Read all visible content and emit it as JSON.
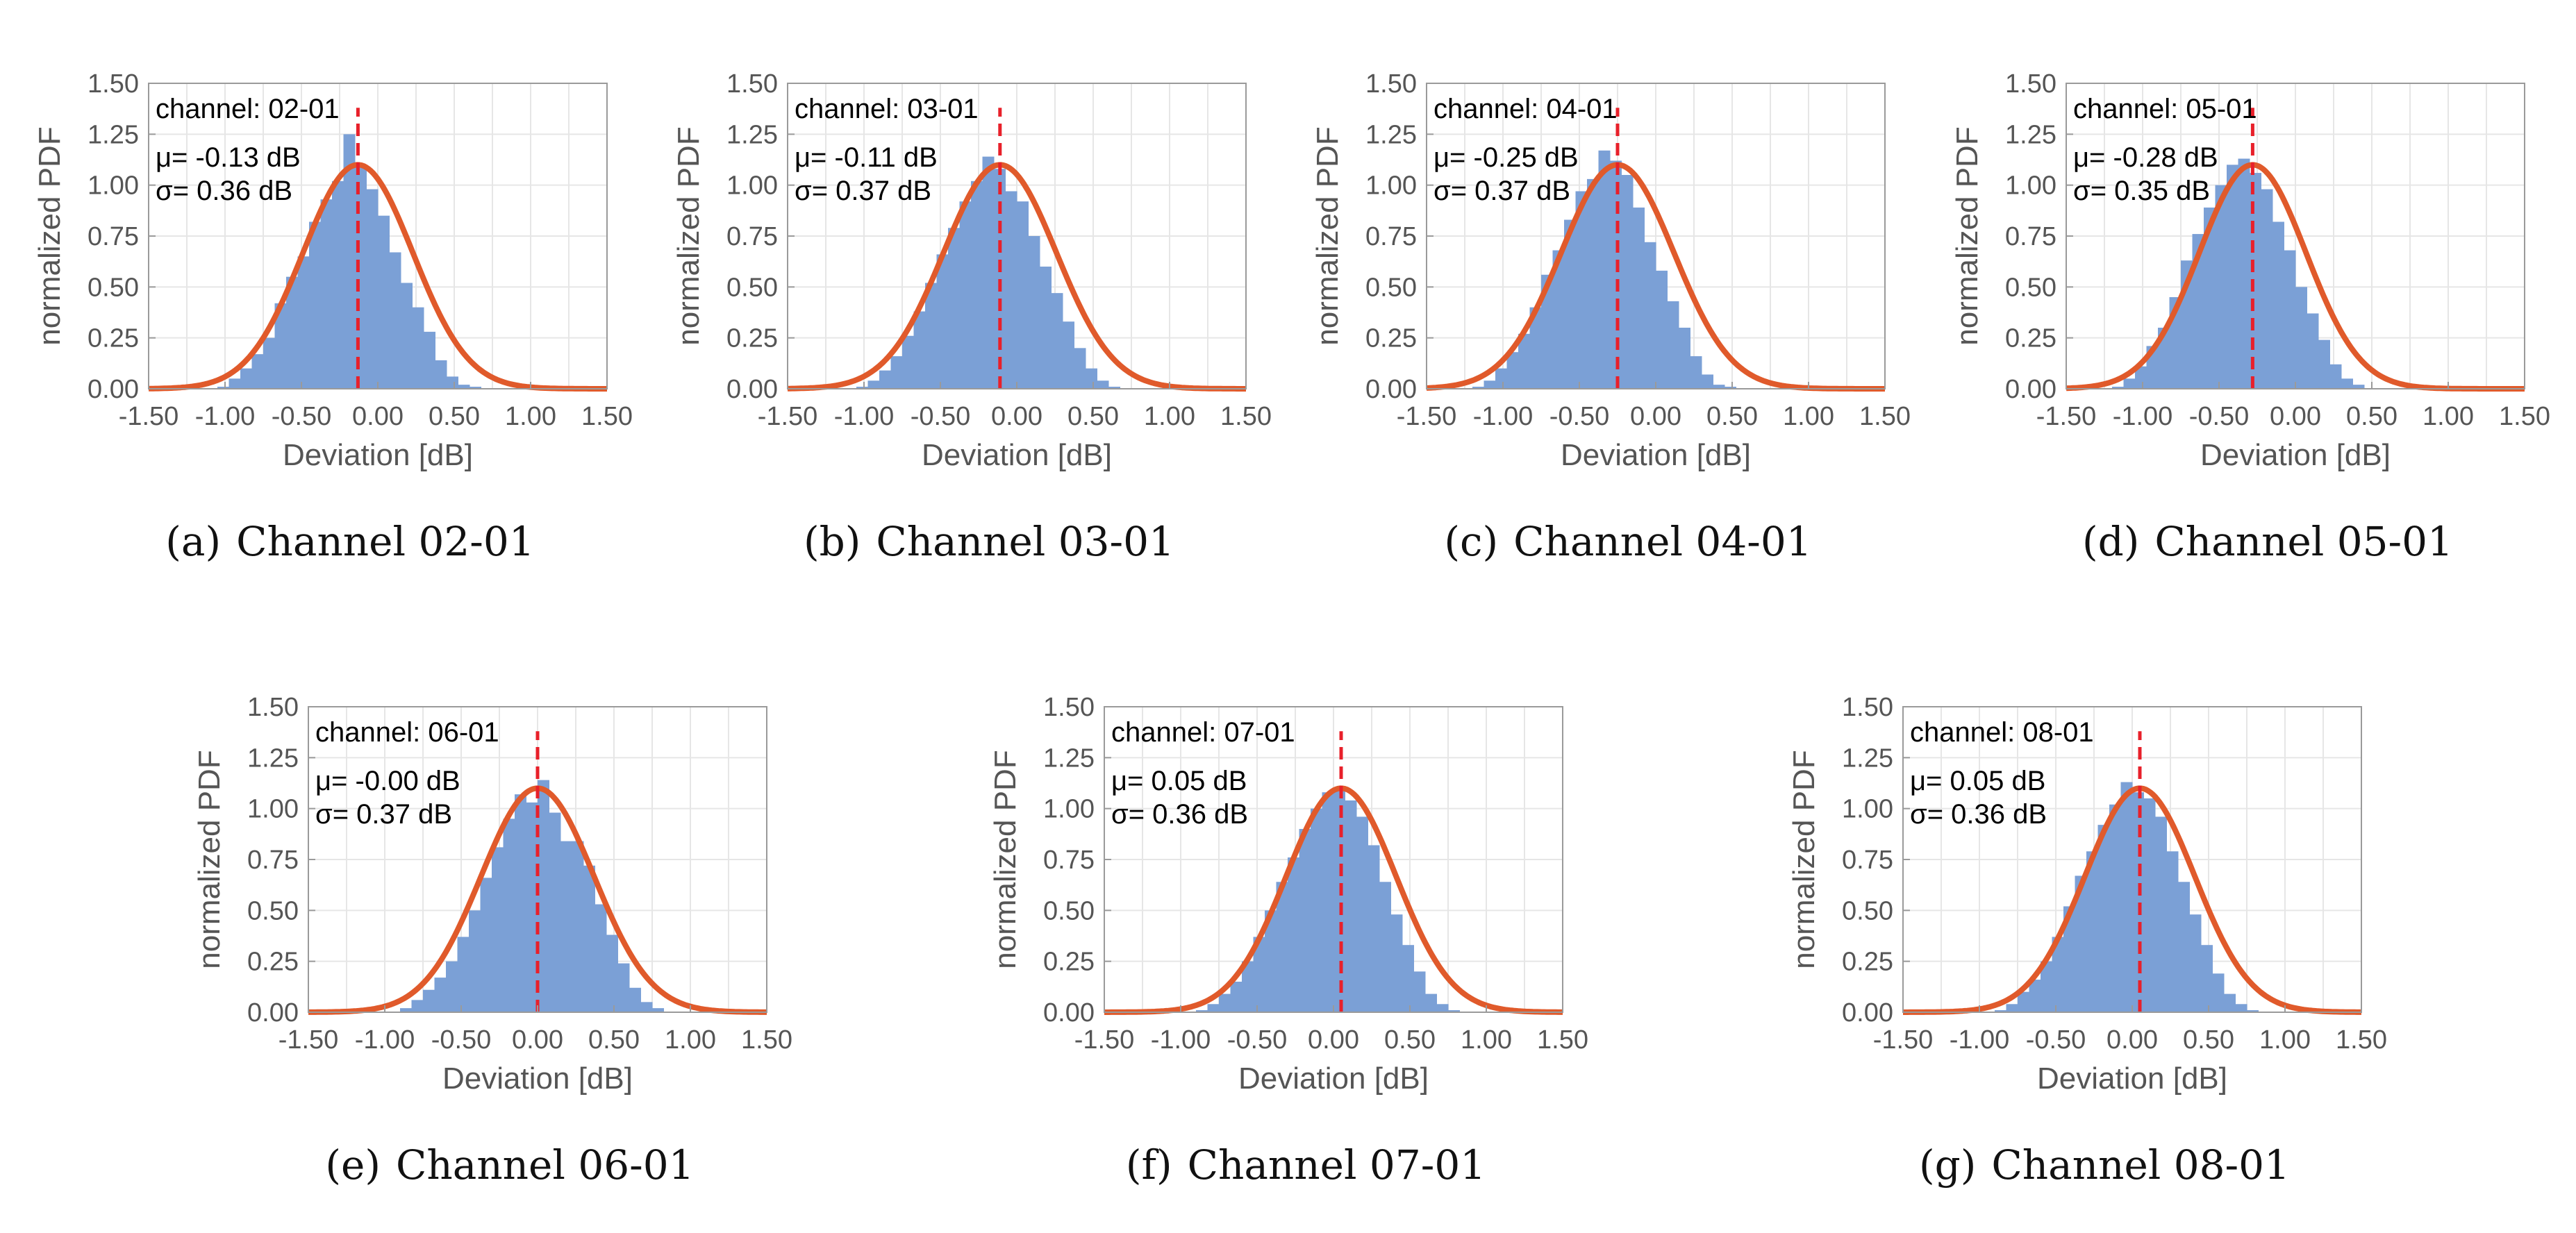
{
  "colors": {
    "bar": "#7ba0d6",
    "fit": "#e05a2b",
    "mean_line": "#e8202a",
    "axis": "#9a9a9a",
    "grid": "#e6e6e6",
    "tick_text": "#555555"
  },
  "chart_data": [
    {
      "type": "bar",
      "channel_label": "channel: 02-01",
      "mu_text": "μ= -0.13 dB",
      "sigma_text": "σ= 0.36 dB",
      "mu": -0.13,
      "sigma": 0.36,
      "caption_letter": "(a)",
      "caption_text": "Channel 02-01",
      "xlabel": "Deviation [dB]",
      "ylabel": "normalized PDF",
      "xlim": [
        -1.5,
        1.5
      ],
      "ylim": [
        0,
        1.5
      ],
      "xticks": [
        "-1.50",
        "-1.00",
        "-0.50",
        "0.00",
        "0.50",
        "1.00",
        "1.50"
      ],
      "yticks": [
        "0.00",
        "0.25",
        "0.50",
        "0.75",
        "1.00",
        "1.25",
        "1.50"
      ],
      "bin_width": 0.075,
      "bin_start": -1.05,
      "values": [
        0.01,
        0.05,
        0.1,
        0.17,
        0.25,
        0.42,
        0.55,
        0.65,
        0.82,
        0.93,
        1.02,
        1.25,
        1.1,
        0.98,
        0.85,
        0.67,
        0.52,
        0.4,
        0.28,
        0.14,
        0.06,
        0.02,
        0.01,
        0.0
      ],
      "grid": true
    },
    {
      "type": "bar",
      "channel_label": "channel: 03-01",
      "mu_text": "μ= -0.11 dB",
      "sigma_text": "σ= 0.37 dB",
      "mu": -0.11,
      "sigma": 0.37,
      "caption_letter": "(b)",
      "caption_text": "Channel 03-01",
      "xlabel": "Deviation [dB]",
      "ylabel": "normalized PDF",
      "xlim": [
        -1.5,
        1.5
      ],
      "ylim": [
        0,
        1.5
      ],
      "xticks": [
        "-1.50",
        "-1.00",
        "-0.50",
        "0.00",
        "0.50",
        "1.00",
        "1.50"
      ],
      "yticks": [
        "0.00",
        "0.25",
        "0.50",
        "0.75",
        "1.00",
        "1.25",
        "1.50"
      ],
      "bin_width": 0.075,
      "bin_start": -1.05,
      "values": [
        0.01,
        0.04,
        0.09,
        0.16,
        0.26,
        0.38,
        0.52,
        0.66,
        0.79,
        0.92,
        1.02,
        1.14,
        1.08,
        0.97,
        0.92,
        0.75,
        0.6,
        0.47,
        0.33,
        0.2,
        0.1,
        0.04,
        0.01,
        0.0
      ],
      "grid": true
    },
    {
      "type": "bar",
      "channel_label": "channel: 04-01",
      "mu_text": "μ= -0.25 dB",
      "sigma_text": "σ= 0.37 dB",
      "mu": -0.25,
      "sigma": 0.37,
      "caption_letter": "(c)",
      "caption_text": "Channel 04-01",
      "xlabel": "Deviation [dB]",
      "ylabel": "normalized PDF",
      "xlim": [
        -1.5,
        1.5
      ],
      "ylim": [
        0,
        1.5
      ],
      "xticks": [
        "-1.50",
        "-1.00",
        "-0.50",
        "0.00",
        "0.50",
        "1.00",
        "1.50"
      ],
      "yticks": [
        "0.00",
        "0.25",
        "0.50",
        "0.75",
        "1.00",
        "1.25",
        "1.50"
      ],
      "bin_width": 0.075,
      "bin_start": -1.2,
      "values": [
        0.01,
        0.04,
        0.1,
        0.18,
        0.27,
        0.4,
        0.56,
        0.68,
        0.83,
        0.97,
        1.03,
        1.17,
        1.12,
        1.05,
        0.89,
        0.72,
        0.58,
        0.43,
        0.3,
        0.16,
        0.07,
        0.02,
        0.01,
        0.0
      ],
      "grid": true
    },
    {
      "type": "bar",
      "channel_label": "channel: 05-01",
      "mu_text": "μ= -0.28 dB",
      "sigma_text": "σ= 0.35 dB",
      "mu": -0.28,
      "sigma": 0.35,
      "caption_letter": "(d)",
      "caption_text": "Channel 05-01",
      "xlabel": "Deviation [dB]",
      "ylabel": "normalized PDF",
      "xlim": [
        -1.5,
        1.5
      ],
      "ylim": [
        0,
        1.5
      ],
      "xticks": [
        "-1.50",
        "-1.00",
        "-0.50",
        "0.00",
        "0.50",
        "1.00",
        "1.50"
      ],
      "yticks": [
        "0.00",
        "0.25",
        "0.50",
        "0.75",
        "1.00",
        "1.25",
        "1.50"
      ],
      "bin_width": 0.075,
      "bin_start": -1.2,
      "values": [
        0.01,
        0.05,
        0.11,
        0.21,
        0.3,
        0.45,
        0.63,
        0.76,
        0.89,
        1.0,
        1.1,
        1.13,
        1.06,
        0.98,
        0.82,
        0.68,
        0.5,
        0.37,
        0.24,
        0.12,
        0.05,
        0.02,
        0.0,
        0.0
      ],
      "grid": true
    },
    {
      "type": "bar",
      "channel_label": "channel: 06-01",
      "mu_text": "μ= -0.00 dB",
      "sigma_text": "σ= 0.37 dB",
      "mu": 0.0,
      "sigma": 0.37,
      "caption_letter": "(e)",
      "caption_text": "Channel 06-01",
      "xlabel": "Deviation [dB]",
      "ylabel": "normalized PDF",
      "xlim": [
        -1.5,
        1.5
      ],
      "ylim": [
        0,
        1.5
      ],
      "xticks": [
        "-1.50",
        "-1.00",
        "-0.50",
        "0.00",
        "0.50",
        "1.00",
        "1.50"
      ],
      "yticks": [
        "0.00",
        "0.25",
        "0.50",
        "0.75",
        "1.00",
        "1.25",
        "1.50"
      ],
      "bin_width": 0.075,
      "bin_start": -0.9,
      "values": [
        0.02,
        0.06,
        0.11,
        0.17,
        0.25,
        0.37,
        0.5,
        0.66,
        0.81,
        0.95,
        1.07,
        1.03,
        1.14,
        0.98,
        0.84,
        0.84,
        0.72,
        0.53,
        0.38,
        0.24,
        0.12,
        0.05,
        0.02,
        0.0
      ],
      "grid": true
    },
    {
      "type": "bar",
      "channel_label": "channel: 07-01",
      "mu_text": "μ= 0.05 dB",
      "sigma_text": "σ= 0.36 dB",
      "mu": 0.05,
      "sigma": 0.36,
      "caption_letter": "(f)",
      "caption_text": "Channel 07-01",
      "xlabel": "Deviation [dB]",
      "ylabel": "normalized PDF",
      "xlim": [
        -1.5,
        1.5
      ],
      "ylim": [
        0,
        1.5
      ],
      "xticks": [
        "-1.50",
        "-1.00",
        "-0.50",
        "0.00",
        "0.50",
        "1.00",
        "1.50"
      ],
      "yticks": [
        "0.00",
        "0.25",
        "0.50",
        "0.75",
        "1.00",
        "1.25",
        "1.50"
      ],
      "bin_width": 0.075,
      "bin_start": -0.9,
      "values": [
        0.01,
        0.04,
        0.09,
        0.15,
        0.25,
        0.37,
        0.5,
        0.64,
        0.76,
        0.9,
        1.0,
        1.08,
        1.1,
        1.04,
        0.96,
        0.82,
        0.64,
        0.48,
        0.33,
        0.2,
        0.09,
        0.04,
        0.01,
        0.0
      ],
      "grid": true
    },
    {
      "type": "bar",
      "channel_label": "channel: 08-01",
      "mu_text": "μ= 0.05 dB",
      "sigma_text": "σ= 0.36 dB",
      "mu": 0.05,
      "sigma": 0.36,
      "caption_letter": "(g)",
      "caption_text": "Channel 08-01",
      "xlabel": "Deviation [dB]",
      "ylabel": "normalized PDF",
      "xlim": [
        -1.5,
        1.5
      ],
      "ylim": [
        0,
        1.5
      ],
      "xticks": [
        "-1.50",
        "-1.00",
        "-0.50",
        "0.00",
        "0.50",
        "1.00",
        "1.50"
      ],
      "yticks": [
        "0.00",
        "0.25",
        "0.50",
        "0.75",
        "1.00",
        "1.25",
        "1.50"
      ],
      "bin_width": 0.075,
      "bin_start": -0.9,
      "values": [
        0.01,
        0.04,
        0.1,
        0.16,
        0.25,
        0.37,
        0.52,
        0.67,
        0.79,
        0.92,
        1.02,
        1.13,
        1.08,
        1.05,
        0.96,
        0.79,
        0.64,
        0.48,
        0.33,
        0.19,
        0.09,
        0.04,
        0.01,
        0.0
      ],
      "grid": true
    }
  ]
}
